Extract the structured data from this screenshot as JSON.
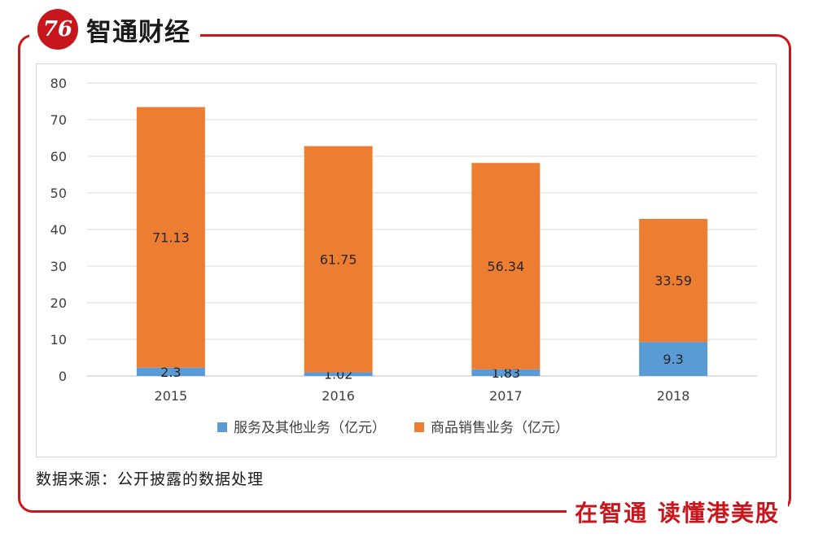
{
  "brand": {
    "logo_mark": "76",
    "name": "智通财经",
    "slogan": "在智通 读懂港美股",
    "accent": "#c8161d"
  },
  "source_note": "数据来源：公开披露的数据处理",
  "chart_data": {
    "type": "bar",
    "stacked": true,
    "categories": [
      "2015",
      "2016",
      "2017",
      "2018"
    ],
    "series": [
      {
        "name": "服务及其他业务（亿元）",
        "color": "#5b9bd5",
        "values": [
          2.3,
          1.02,
          1.83,
          9.3
        ],
        "labels": [
          "2.3",
          "1.02",
          "1.83",
          "9.3"
        ]
      },
      {
        "name": "商品销售业务（亿元）",
        "color": "#ed7d31",
        "values": [
          71.13,
          61.75,
          56.34,
          33.59
        ],
        "labels": [
          "71.13",
          "61.75",
          "56.34",
          "33.59"
        ]
      }
    ],
    "ylim": [
      0,
      80
    ],
    "yticks": [
      0,
      10,
      20,
      30,
      40,
      50,
      60,
      70,
      80
    ],
    "grid": true,
    "legend": "bottom"
  }
}
